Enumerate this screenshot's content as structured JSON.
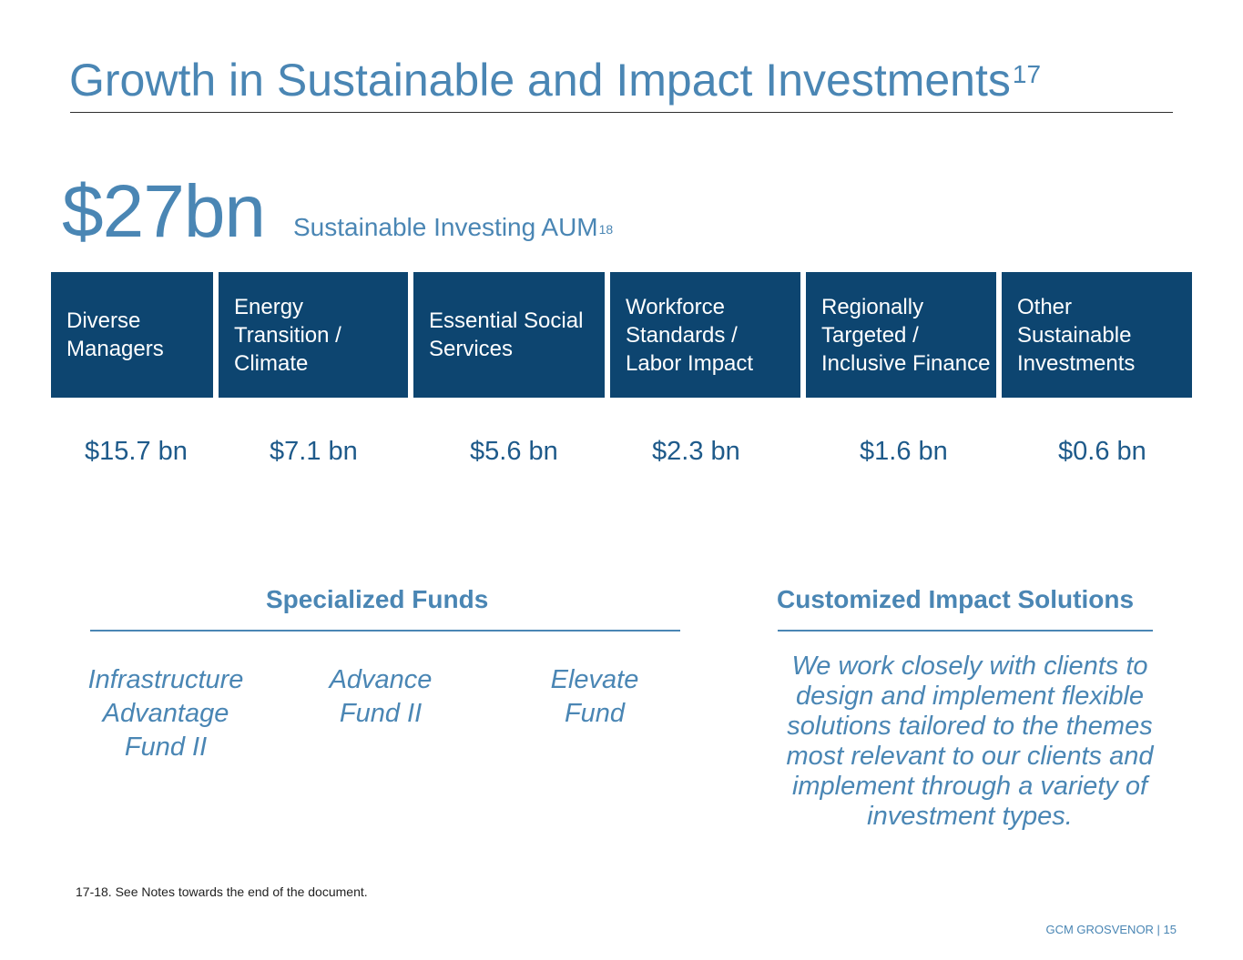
{
  "header": {
    "title": "Growth in Sustainable and Impact Investments",
    "title_note": "17"
  },
  "aum": {
    "amount": "$27bn",
    "label": "Sustainable Investing AUM",
    "label_note": "18"
  },
  "categories": [
    {
      "label": "Diverse\nManagers",
      "value": "$15.7 bn"
    },
    {
      "label": "Energy\nTransition /\nClimate",
      "value": "$7.1 bn"
    },
    {
      "label": "Essential Social\nServices",
      "value": "$5.6 bn"
    },
    {
      "label": "Workforce\nStandards /\nLabor Impact",
      "value": "$2.3 bn"
    },
    {
      "label": "Regionally\nTargeted /\nInclusive Finance",
      "value": "$1.6 bn"
    },
    {
      "label": "Other\nSustainable\nInvestments",
      "value": "$0.6 bn"
    }
  ],
  "specialized_funds": {
    "heading": "Specialized Funds",
    "funds": [
      "Infrastructure\nAdvantage\nFund II",
      "Advance\nFund II",
      "Elevate\nFund"
    ]
  },
  "custom_solutions": {
    "heading": "Customized Impact Solutions",
    "text": "We work closely with clients to design and implement flexible solutions tailored to the themes most relevant to our clients and implement through a variety of investment types."
  },
  "footnote": "17-18. See Notes towards the end of the document.",
  "footer": {
    "brand_page": "GCM GROSVENOR | 15"
  },
  "colors": {
    "accent": "#4a86b4",
    "box_fill": "#0d4570",
    "value_text": "#1e5a8a"
  }
}
